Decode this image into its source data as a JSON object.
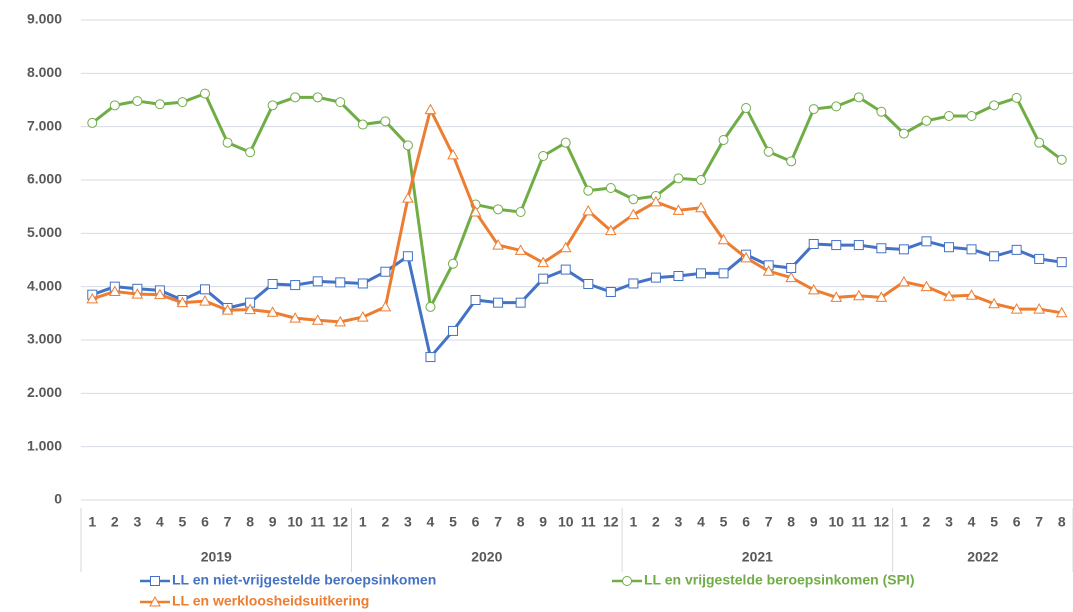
{
  "chart_data": {
    "type": "line",
    "categories": [
      "1",
      "2",
      "3",
      "4",
      "5",
      "6",
      "7",
      "8",
      "9",
      "10",
      "11",
      "12",
      "1",
      "2",
      "3",
      "4",
      "5",
      "6",
      "7",
      "8",
      "9",
      "10",
      "11",
      "12",
      "1",
      "2",
      "3",
      "4",
      "5",
      "6",
      "7",
      "8",
      "9",
      "10",
      "11",
      "12",
      "1",
      "2",
      "3",
      "4",
      "5",
      "6",
      "7",
      "8"
    ],
    "groups": [
      {
        "label": "2019",
        "span": 12
      },
      {
        "label": "2020",
        "span": 12
      },
      {
        "label": "2021",
        "span": 12
      },
      {
        "label": "2022",
        "span": 8
      }
    ],
    "series": [
      {
        "name": "LL en niet-vrijgestelde beroepsinkomen",
        "color": "#4472c4",
        "marker": "square",
        "values": [
          3850,
          4000,
          3960,
          3930,
          3750,
          3950,
          3600,
          3700,
          4050,
          4030,
          4100,
          4080,
          4060,
          4280,
          4570,
          2680,
          3170,
          3750,
          3700,
          3700,
          4150,
          4320,
          4050,
          3900,
          4060,
          4170,
          4200,
          4250,
          4250,
          4600,
          4400,
          4350,
          4800,
          4780,
          4780,
          4720,
          4700,
          4850,
          4740,
          4700,
          4570,
          4690,
          4520,
          4460
        ]
      },
      {
        "name": "LL en vrijgestelde beroepsinkomen (SPI)",
        "color": "#70ad47",
        "marker": "circle",
        "values": [
          7070,
          7400,
          7480,
          7420,
          7460,
          7620,
          6700,
          6520,
          7400,
          7550,
          7550,
          7460,
          7040,
          7100,
          6650,
          3620,
          4430,
          5540,
          5450,
          5400,
          6450,
          6700,
          5800,
          5850,
          5640,
          5700,
          6030,
          6000,
          6750,
          7350,
          6530,
          6350,
          7330,
          7380,
          7550,
          7280,
          6870,
          7110,
          7200,
          7200,
          7400,
          7540,
          6700,
          6380
        ]
      },
      {
        "name": "LL en werkloosheidsuitkering",
        "color": "#ed7d31",
        "marker": "triangle",
        "values": [
          3770,
          3910,
          3860,
          3850,
          3700,
          3730,
          3560,
          3570,
          3520,
          3410,
          3370,
          3340,
          3430,
          3620,
          5660,
          7320,
          6470,
          5400,
          4780,
          4680,
          4450,
          4730,
          5420,
          5050,
          5350,
          5590,
          5430,
          5480,
          4880,
          4540,
          4290,
          4170,
          3940,
          3800,
          3830,
          3800,
          4090,
          4000,
          3820,
          3840,
          3680,
          3580,
          3580,
          3510
        ]
      }
    ],
    "ylim": [
      0,
      9000
    ],
    "yticks": [
      0,
      {
        "value": 1000,
        "label": "1.000"
      },
      {
        "value": 2000,
        "label": "2.000"
      },
      {
        "value": 3000,
        "label": "3.000"
      },
      {
        "value": 4000,
        "label": "4.000"
      },
      {
        "value": 5000,
        "label": "5.000"
      },
      {
        "value": 6000,
        "label": "6.000"
      },
      {
        "value": 7000,
        "label": "7.000"
      },
      {
        "value": 8000,
        "label": "8.000"
      },
      {
        "value": 9000,
        "label": "9.000"
      }
    ],
    "grid": true
  }
}
